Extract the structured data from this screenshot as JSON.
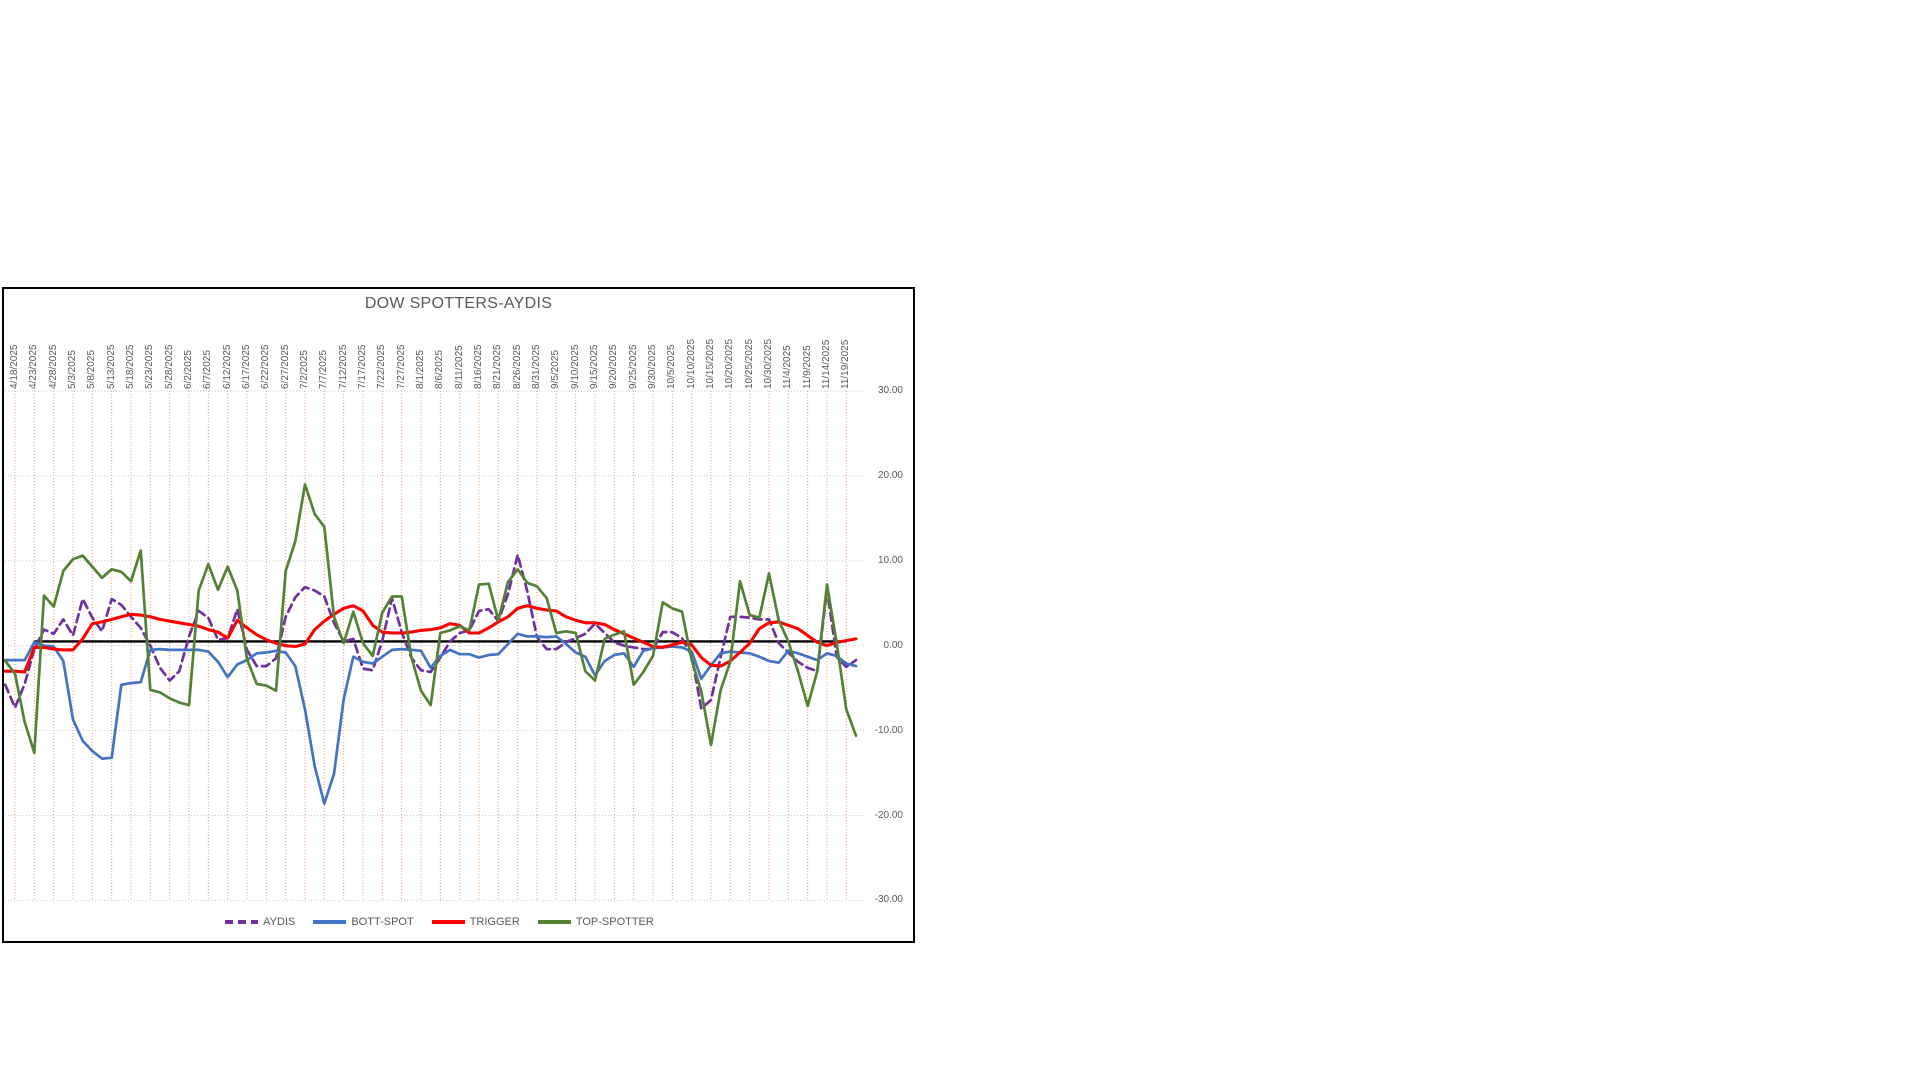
{
  "window": {
    "background": "#FFFFFF"
  },
  "chart": {
    "border_color": "#000000",
    "background": "#FFFFFF",
    "title_color": "#595959",
    "axis_text_color": "#595959",
    "v_gridline_color": "#EF9A5F",
    "h_gridline_color": "#C9C9C9"
  },
  "chart_data": {
    "type": "line",
    "title": "DOW SPOTTERS-AYDIS",
    "xlabel": "",
    "ylabel": "",
    "ylim": [
      -30,
      30
    ],
    "y_tick_step": 10,
    "y_tick_labels": [
      "30.00",
      "20.00",
      "10.00",
      "0.00",
      "-10.00",
      "-20.00",
      "-30.00"
    ],
    "grid": {
      "vertical": "orange dotted at every date label",
      "horizontal": "gray dotted every 10 units"
    },
    "legend_position": "bottom",
    "x_tick_labels": [
      "4/18/2025",
      "4/23/2025",
      "4/28/2025",
      "5/3/2025",
      "5/8/2025",
      "5/13/2025",
      "5/18/2025",
      "5/23/2025",
      "5/28/2025",
      "6/2/2025",
      "6/7/2025",
      "6/12/2025",
      "6/17/2025",
      "6/22/2025",
      "6/27/2025",
      "7/2/2025",
      "7/7/2025",
      "7/12/2025",
      "7/17/2025",
      "7/22/2025",
      "7/27/2025",
      "8/1/2025",
      "8/6/2025",
      "8/11/2025",
      "8/16/2025",
      "8/21/2025",
      "8/26/2025",
      "8/31/2025",
      "9/5/2025",
      "9/10/2025",
      "9/15/2025",
      "9/20/2025",
      "9/25/2025",
      "9/30/2025",
      "10/5/2025",
      "10/10/2025",
      "10/15/2025",
      "10/20/2025",
      "10/25/2025",
      "10/30/2025",
      "11/4/2025",
      "11/9/2025",
      "11/14/2025",
      "11/19/2025"
    ],
    "sampling_note": "Underlying data is daily; values below estimated at 2.5-day intervals. First sample sits at the plot left edge (~2.5 days before 4/18/2025), sample 2 aligns with 4/18/2025, then every 2.5 days; last sample is ~2.5 days after 11/19/2025.",
    "baseline": {
      "value": 0.5,
      "color": "#000000",
      "note": "flat black reference line, no legend entry"
    },
    "series": [
      {
        "name": "AYDIS",
        "color": "#7030A0",
        "style": "dashed",
        "values": [
          -4.6,
          -7.3,
          -4.5,
          -0.4,
          1.9,
          1.4,
          3.1,
          1.2,
          5.5,
          3.3,
          1.7,
          5.5,
          4.8,
          3.4,
          2.1,
          0.0,
          -2.6,
          -4.1,
          -3.0,
          1.1,
          4.1,
          3.3,
          0.7,
          0.9,
          4.3,
          -0.5,
          -2.4,
          -2.4,
          -1.5,
          3.4,
          5.7,
          6.9,
          6.5,
          5.8,
          2.7,
          0.5,
          0.8,
          -2.7,
          -2.9,
          0.6,
          5.6,
          1.6,
          -1.4,
          -2.9,
          -3.1,
          -1.4,
          0.5,
          1.5,
          1.8,
          4.1,
          4.3,
          2.9,
          6.1,
          10.7,
          6.4,
          1.0,
          -0.4,
          -0.4,
          0.4,
          0.9,
          1.4,
          2.6,
          1.5,
          0.4,
          0.0,
          -0.2,
          -0.4,
          -0.4,
          1.6,
          1.6,
          0.9,
          -1.2,
          -7.4,
          -6.4,
          -1.3,
          3.4,
          3.4,
          3.3,
          3.1,
          3.1,
          0.3,
          -0.8,
          -1.9,
          -2.6,
          -3.0,
          6.6,
          -1.3,
          -2.5,
          -1.7
        ]
      },
      {
        "name": "BOTT-SPOT",
        "color": "#4472C4",
        "style": "solid",
        "values": [
          -1.7,
          -1.7,
          -1.7,
          0.4,
          0.0,
          -0.1,
          -1.8,
          -8.7,
          -11.2,
          -12.4,
          -13.3,
          -13.2,
          -4.6,
          -4.4,
          -4.3,
          -0.5,
          -0.4,
          -0.5,
          -0.5,
          -0.5,
          -0.5,
          -0.7,
          -1.9,
          -3.7,
          -2.2,
          -1.7,
          -0.9,
          -0.8,
          -0.6,
          -0.8,
          -2.4,
          -7.5,
          -14.2,
          -18.6,
          -15.1,
          -6.3,
          -1.3,
          -1.9,
          -2.1,
          -1.3,
          -0.5,
          -0.4,
          -0.5,
          -0.6,
          -2.6,
          -1.2,
          -0.5,
          -1.0,
          -1.0,
          -1.4,
          -1.1,
          -1.0,
          0.2,
          1.4,
          1.1,
          1.1,
          1.0,
          1.1,
          0.2,
          -0.8,
          -1.3,
          -3.5,
          -1.8,
          -1.1,
          -0.9,
          -2.5,
          -0.6,
          -0.3,
          -0.2,
          -0.1,
          -0.2,
          -0.7,
          -3.9,
          -2.3,
          -0.9,
          -0.7,
          -0.8,
          -0.9,
          -1.3,
          -1.8,
          -2.0,
          -0.6,
          -0.9,
          -1.3,
          -1.7,
          -0.9,
          -1.2,
          -2.1,
          -2.4
        ]
      },
      {
        "name": "TRIGGER",
        "color": "#FF0000",
        "style": "solid",
        "values": [
          -3.0,
          -3.0,
          -3.1,
          -0.2,
          -0.2,
          -0.4,
          -0.5,
          -0.5,
          0.8,
          2.6,
          2.8,
          3.1,
          3.4,
          3.7,
          3.6,
          3.4,
          3.1,
          2.9,
          2.7,
          2.5,
          2.3,
          1.9,
          1.6,
          0.9,
          3.0,
          2.1,
          1.3,
          0.7,
          0.3,
          0.0,
          -0.1,
          0.2,
          1.9,
          2.9,
          3.7,
          4.4,
          4.7,
          4.1,
          2.4,
          1.6,
          1.5,
          1.5,
          1.6,
          1.8,
          1.9,
          2.1,
          2.6,
          2.4,
          1.5,
          1.5,
          2.1,
          2.8,
          3.4,
          4.4,
          4.7,
          4.4,
          4.2,
          4.1,
          3.4,
          3.0,
          2.7,
          2.7,
          2.5,
          1.9,
          1.4,
          0.9,
          0.4,
          -0.1,
          -0.2,
          0.1,
          0.4,
          0.1,
          -1.4,
          -2.3,
          -2.4,
          -1.8,
          -0.8,
          0.3,
          2.0,
          2.7,
          2.8,
          2.4,
          2.0,
          1.2,
          0.4,
          0.0,
          0.4,
          0.6,
          0.8
        ]
      },
      {
        "name": "TOP-SPOTTER",
        "color": "#548235",
        "style": "solid",
        "values": [
          -1.8,
          -3.3,
          -9.0,
          -12.6,
          5.9,
          4.6,
          8.8,
          10.2,
          10.6,
          9.3,
          8.0,
          9.0,
          8.7,
          7.6,
          11.2,
          -5.2,
          -5.5,
          -6.2,
          -6.7,
          -7.0,
          6.5,
          9.6,
          6.6,
          9.3,
          6.5,
          -1.6,
          -4.5,
          -4.7,
          -5.3,
          8.8,
          12.3,
          19.0,
          15.5,
          14.0,
          3.4,
          0.3,
          4.0,
          0.3,
          -1.2,
          3.9,
          5.8,
          5.8,
          -1.3,
          -5.3,
          -7.0,
          1.5,
          1.8,
          2.3,
          1.8,
          7.2,
          7.3,
          3.0,
          7.5,
          9.0,
          7.4,
          7.0,
          5.6,
          1.5,
          1.7,
          1.5,
          -3.0,
          -4.1,
          0.8,
          1.3,
          1.7,
          -4.6,
          -3.1,
          -1.2,
          5.1,
          4.4,
          4.0,
          -1.7,
          -5.4,
          -11.7,
          -5.2,
          -1.9,
          7.6,
          3.6,
          3.3,
          8.5,
          3.0,
          0.5,
          -3.0,
          -7.1,
          -3.0,
          7.2,
          0.3,
          -7.5,
          -10.6
        ]
      }
    ]
  }
}
